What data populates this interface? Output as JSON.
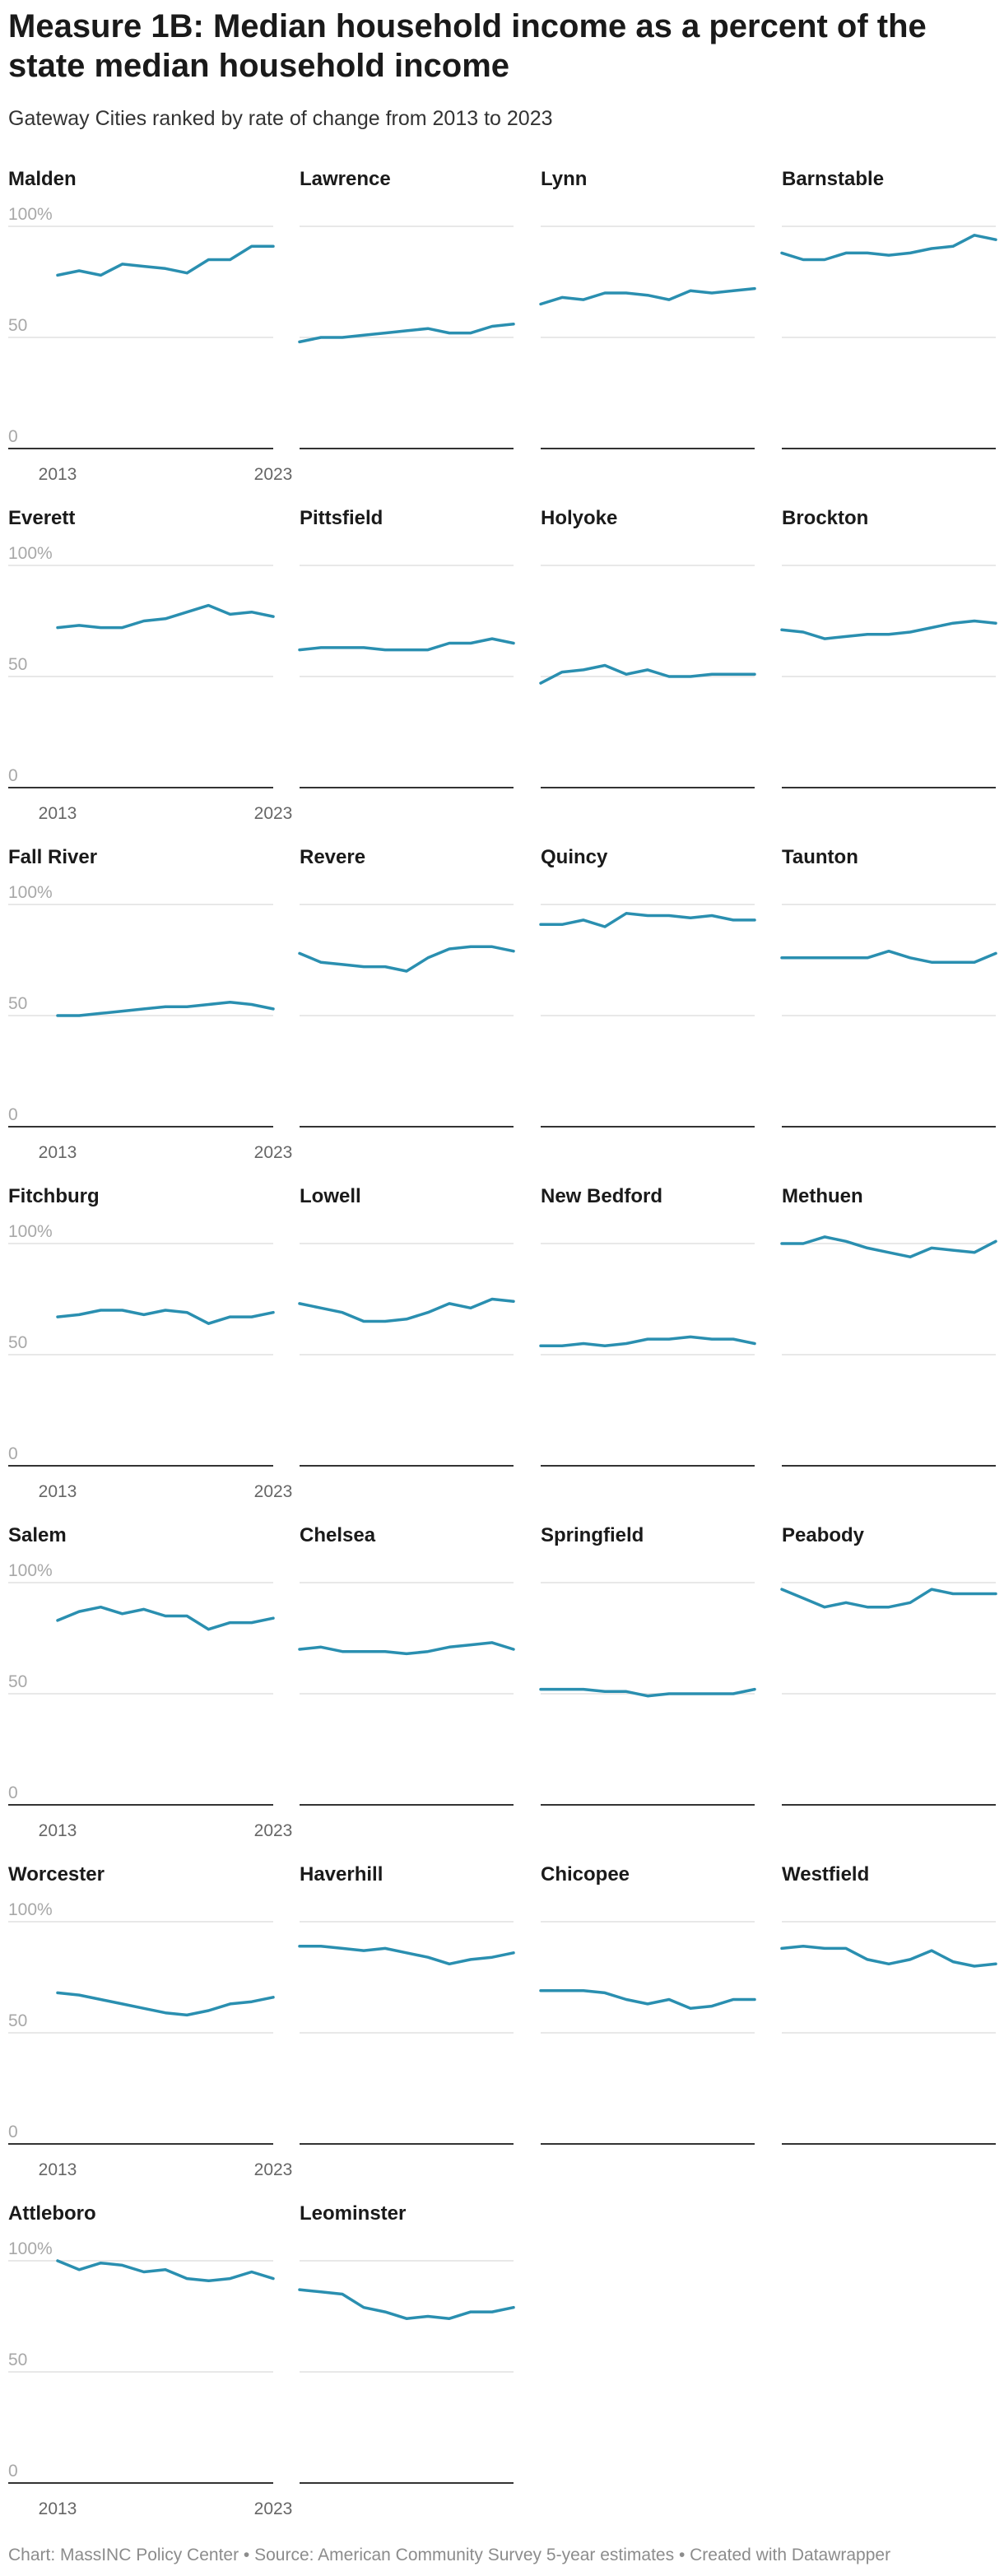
{
  "title": "Measure 1B: Median household income as a percent of the state median household income",
  "subtitle": "Gateway Cities ranked by rate of change from 2013 to 2023",
  "footer": "Chart: MassINC Policy Center • Source: American Community Survey 5-year estimates • Created with Datawrapper",
  "colors": {
    "line": "#2a8fb0",
    "grid": "#e0e0e0",
    "axis": "#333333",
    "tick": "#a8a8a8"
  },
  "chart_data": {
    "type": "line",
    "layout": "small-multiples",
    "x": [
      2013,
      2014,
      2015,
      2016,
      2017,
      2018,
      2019,
      2020,
      2021,
      2022,
      2023
    ],
    "x_tick_labels": [
      "2013",
      "2023"
    ],
    "y_ticks": [
      {
        "value": 0,
        "label": "0"
      },
      {
        "value": 50,
        "label": "50"
      },
      {
        "value": 100,
        "label": "100%"
      }
    ],
    "ylim": [
      0,
      100
    ],
    "grid": true,
    "series": [
      {
        "name": "Malden",
        "values": [
          78,
          80,
          78,
          83,
          82,
          81,
          79,
          85,
          85,
          91,
          91
        ]
      },
      {
        "name": "Lawrence",
        "values": [
          48,
          50,
          50,
          51,
          52,
          53,
          54,
          52,
          52,
          55,
          56
        ]
      },
      {
        "name": "Lynn",
        "values": [
          65,
          68,
          67,
          70,
          70,
          69,
          67,
          71,
          70,
          71,
          72
        ]
      },
      {
        "name": "Barnstable",
        "values": [
          88,
          85,
          85,
          88,
          88,
          87,
          88,
          90,
          91,
          96,
          94
        ]
      },
      {
        "name": "Everett",
        "values": [
          72,
          73,
          72,
          72,
          75,
          76,
          79,
          82,
          78,
          79,
          77
        ]
      },
      {
        "name": "Pittsfield",
        "values": [
          62,
          63,
          63,
          63,
          62,
          62,
          62,
          65,
          65,
          67,
          65
        ]
      },
      {
        "name": "Holyoke",
        "values": [
          47,
          52,
          53,
          55,
          51,
          53,
          50,
          50,
          51,
          51,
          51
        ]
      },
      {
        "name": "Brockton",
        "values": [
          71,
          70,
          67,
          68,
          69,
          69,
          70,
          72,
          74,
          75,
          74
        ]
      },
      {
        "name": "Fall River",
        "values": [
          50,
          50,
          51,
          52,
          53,
          54,
          54,
          55,
          56,
          55,
          53
        ]
      },
      {
        "name": "Revere",
        "values": [
          78,
          74,
          73,
          72,
          72,
          70,
          76,
          80,
          81,
          81,
          79
        ]
      },
      {
        "name": "Quincy",
        "values": [
          91,
          91,
          93,
          90,
          96,
          95,
          95,
          94,
          95,
          93,
          93
        ]
      },
      {
        "name": "Taunton",
        "values": [
          76,
          76,
          76,
          76,
          76,
          79,
          76,
          74,
          74,
          74,
          78
        ]
      },
      {
        "name": "Fitchburg",
        "values": [
          67,
          68,
          70,
          70,
          68,
          70,
          69,
          64,
          67,
          67,
          69
        ]
      },
      {
        "name": "Lowell",
        "values": [
          73,
          71,
          69,
          65,
          65,
          66,
          69,
          73,
          71,
          75,
          74
        ]
      },
      {
        "name": "New Bedford",
        "values": [
          54,
          54,
          55,
          54,
          55,
          57,
          57,
          58,
          57,
          57,
          55
        ]
      },
      {
        "name": "Methuen",
        "values": [
          100,
          100,
          103,
          101,
          98,
          96,
          94,
          98,
          97,
          96,
          101
        ]
      },
      {
        "name": "Salem",
        "values": [
          83,
          87,
          89,
          86,
          88,
          85,
          85,
          79,
          82,
          82,
          84
        ]
      },
      {
        "name": "Chelsea",
        "values": [
          70,
          71,
          69,
          69,
          69,
          68,
          69,
          71,
          72,
          73,
          70
        ]
      },
      {
        "name": "Springfield",
        "values": [
          52,
          52,
          52,
          51,
          51,
          49,
          50,
          50,
          50,
          50,
          52
        ]
      },
      {
        "name": "Peabody",
        "values": [
          97,
          93,
          89,
          91,
          89,
          89,
          91,
          97,
          95,
          95,
          95
        ]
      },
      {
        "name": "Worcester",
        "values": [
          68,
          67,
          65,
          63,
          61,
          59,
          58,
          60,
          63,
          64,
          66
        ]
      },
      {
        "name": "Haverhill",
        "values": [
          89,
          89,
          88,
          87,
          88,
          86,
          84,
          81,
          83,
          84,
          86
        ]
      },
      {
        "name": "Chicopee",
        "values": [
          69,
          69,
          69,
          68,
          65,
          63,
          65,
          61,
          62,
          65,
          65
        ]
      },
      {
        "name": "Westfield",
        "values": [
          88,
          89,
          88,
          88,
          83,
          81,
          83,
          87,
          82,
          80,
          81
        ]
      },
      {
        "name": "Attleboro",
        "values": [
          100,
          96,
          99,
          98,
          95,
          96,
          92,
          91,
          92,
          95,
          92
        ]
      },
      {
        "name": "Leominster",
        "values": [
          87,
          86,
          85,
          79,
          77,
          74,
          75,
          74,
          77,
          77,
          79
        ]
      }
    ]
  }
}
